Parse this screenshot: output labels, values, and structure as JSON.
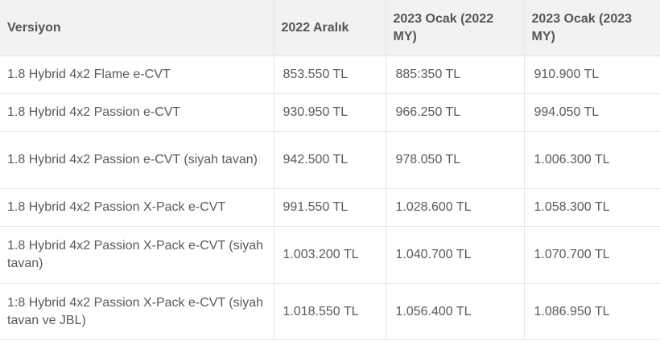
{
  "table": {
    "headers": [
      "Versiyon",
      "2022 Aralık",
      "2023 Ocak (2022 MY)",
      "2023 Ocak (2023 MY)"
    ],
    "rows": [
      [
        "1.8 Hybrid 4x2 Flame e-CVT",
        "853.550 TL",
        "885:350 TL",
        "910.900 TL"
      ],
      [
        "1.8 Hybrid 4x2 Passion e-CVT",
        "930.950 TL",
        "966.250 TL",
        "994.050 TL"
      ],
      [
        "1.8 Hybrid 4x2 Passion e-CVT (siyah tavan)",
        "942.500 TL",
        "978.050 TL",
        "1.006.300 TL"
      ],
      [
        "1.8 Hybrid 4x2 Passion X-Pack e-CVT",
        "991.550 TL",
        "1.028.600 TL",
        "1.058.300 TL"
      ],
      [
        "1.8 Hybrid 4x2 Passion X-Pack e-CVT (siyah tavan)",
        "1.003.200 TL",
        "1.040.700 TL",
        "1.070.700 TL"
      ],
      [
        "1:8 Hybrid 4x2 Passion X-Pack e-CVT (siyah tavan ve JBL)",
        "1.018.550 TL",
        "1.056.400 TL",
        "1.086.950 TL"
      ]
    ]
  },
  "colors": {
    "header_bg": "#f2f2f2",
    "border": "#e6e6e6",
    "text": "#555555"
  }
}
